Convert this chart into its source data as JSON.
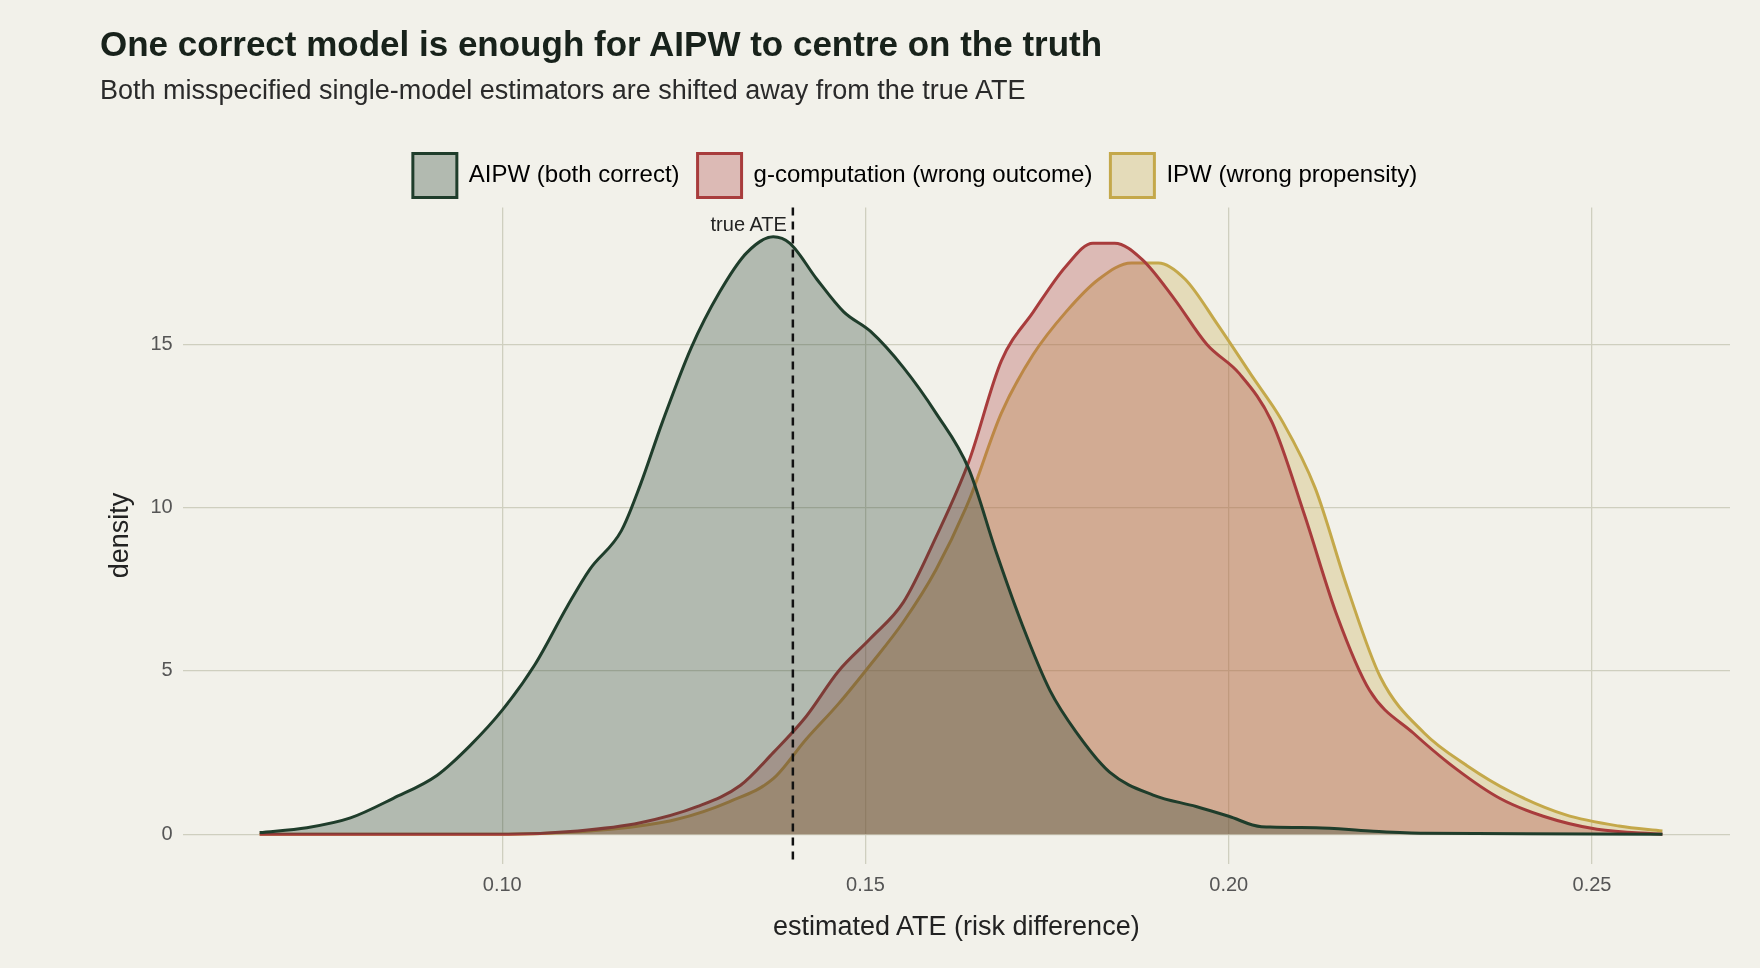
{
  "chart_data": {
    "type": "area",
    "title": "One correct model is enough for AIPW to centre on the truth",
    "subtitle": "Both misspecified single-model estimators are shifted away from the true ATE",
    "xlabel": "estimated ATE (risk difference)",
    "ylabel": "density",
    "xlim": [
      0.056,
      0.269
    ],
    "ylim": [
      -0.9,
      19.2
    ],
    "xticks": [
      {
        "value": 0.1,
        "label": "0.10"
      },
      {
        "value": 0.15,
        "label": "0.15"
      },
      {
        "value": 0.2,
        "label": "0.20"
      },
      {
        "value": 0.25,
        "label": "0.25"
      }
    ],
    "yticks": [
      0,
      5,
      10,
      15
    ],
    "grid": true,
    "legend": "top",
    "ref_lines": [
      {
        "axis": "x",
        "value": 0.14,
        "label": "true ATE",
        "color": "#111111",
        "line_style": "dashed"
      }
    ],
    "series": [
      {
        "name": "AIPW (both correct)",
        "color": "#1f3d2b",
        "x": [
          0.0666,
          0.0731,
          0.0791,
          0.085,
          0.091,
          0.0955,
          0.1,
          0.1045,
          0.109,
          0.112,
          0.1164,
          0.119,
          0.122,
          0.126,
          0.1299,
          0.1336,
          0.1373,
          0.1396,
          0.1433,
          0.147,
          0.1507,
          0.1552,
          0.1597,
          0.1642,
          0.1679,
          0.1716,
          0.1754,
          0.1791,
          0.1836,
          0.1896,
          0.1955,
          0.2,
          0.2045,
          0.212,
          0.2194,
          0.227,
          0.2597
        ],
        "values": [
          0.05,
          0.2,
          0.5,
          1.1,
          1.8,
          2.7,
          3.8,
          5.2,
          7.0,
          8.1,
          9.3,
          10.7,
          12.6,
          14.9,
          16.6,
          17.8,
          18.3,
          18.1,
          17.0,
          16.0,
          15.4,
          14.3,
          12.9,
          11.2,
          8.7,
          6.4,
          4.4,
          3.1,
          1.9,
          1.2,
          0.85,
          0.55,
          0.23,
          0.2,
          0.1,
          0.03,
          0
        ]
      },
      {
        "name": "g-computation (wrong outcome)",
        "color": "#a83c3c",
        "x": [
          0.0666,
          0.1,
          0.1104,
          0.119,
          0.1269,
          0.1328,
          0.1373,
          0.1418,
          0.1463,
          0.1507,
          0.1552,
          0.1597,
          0.1642,
          0.1687,
          0.1731,
          0.1776,
          0.1813,
          0.1843,
          0.1881,
          0.1925,
          0.197,
          0.2015,
          0.206,
          0.2104,
          0.2149,
          0.2194,
          0.2254,
          0.2313,
          0.2373,
          0.2433,
          0.2507,
          0.2597
        ],
        "values": [
          0,
          0,
          0.1,
          0.35,
          0.85,
          1.5,
          2.5,
          3.6,
          5.0,
          6.0,
          7.1,
          9.1,
          11.4,
          14.5,
          16.0,
          17.4,
          18.1,
          18.1,
          17.6,
          16.4,
          15.0,
          14.1,
          12.6,
          9.8,
          6.7,
          4.4,
          3.1,
          2.0,
          1.1,
          0.55,
          0.15,
          0
        ]
      },
      {
        "name": "IPW (wrong propensity)",
        "color": "#c4a84a",
        "x": [
          0.0666,
          0.1,
          0.1149,
          0.1239,
          0.1313,
          0.1373,
          0.1418,
          0.1463,
          0.1507,
          0.1552,
          0.1597,
          0.1642,
          0.1687,
          0.1731,
          0.1776,
          0.1821,
          0.1866,
          0.1903,
          0.194,
          0.1985,
          0.203,
          0.2075,
          0.2119,
          0.2164,
          0.2209,
          0.2269,
          0.2328,
          0.2388,
          0.2463,
          0.2537,
          0.2597
        ],
        "values": [
          0,
          0,
          0.15,
          0.45,
          1.0,
          1.7,
          2.9,
          4.0,
          5.2,
          6.5,
          8.1,
          10.2,
          12.9,
          14.7,
          16.0,
          17.0,
          17.5,
          17.5,
          17.0,
          15.6,
          14.1,
          12.6,
          10.6,
          7.5,
          4.8,
          3.1,
          2.1,
          1.3,
          0.6,
          0.25,
          0.1
        ]
      }
    ]
  }
}
